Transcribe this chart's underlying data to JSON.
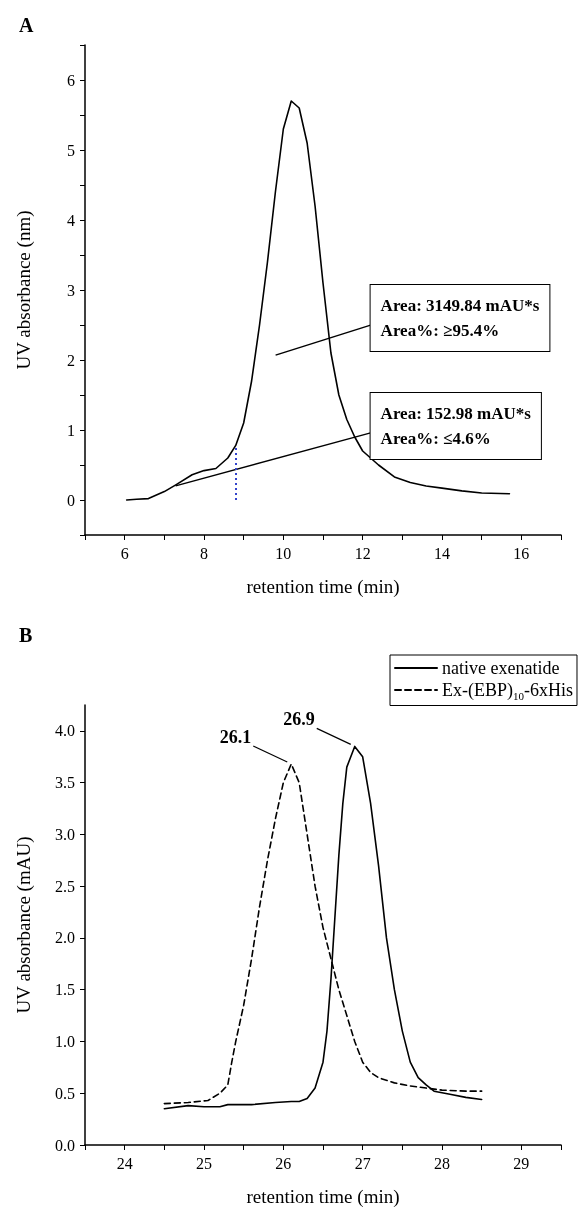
{
  "chart_data": [
    {
      "type": "line",
      "title": "A",
      "xlabel": "retention time (min)",
      "ylabel": "UV absorbance (nm)",
      "xlim": [
        5,
        17
      ],
      "ylim": [
        -0.5,
        6.5
      ],
      "xticks": [
        {
          "value": 5,
          "label": null
        },
        6,
        {
          "value": 7,
          "label": null
        },
        8,
        {
          "value": 9,
          "label": null
        },
        10,
        {
          "value": 11,
          "label": null
        },
        12,
        {
          "value": 13,
          "label": null
        },
        14,
        {
          "value": 15,
          "label": null
        },
        16,
        {
          "value": 17,
          "label": null
        }
      ],
      "yticks": [
        {
          "value": -0.5,
          "label": null
        },
        0,
        {
          "value": 0.5,
          "label": null
        },
        1,
        {
          "value": 1.5,
          "label": null
        },
        2,
        {
          "value": 2.5,
          "label": null
        },
        3,
        {
          "value": 3.5,
          "label": null
        },
        4,
        {
          "value": 4.5,
          "label": null
        },
        5,
        {
          "value": 5.5,
          "label": null
        },
        6,
        {
          "value": 6.5,
          "label": null
        }
      ],
      "grid": false,
      "legend": false,
      "marker": "none",
      "series": [
        {
          "color": "#000000",
          "line_style": "solid",
          "x": [
            6.05,
            6.3,
            6.6,
            7,
            7.3,
            7.7,
            8,
            8.3,
            8.6,
            8.8,
            9,
            9.2,
            9.4,
            9.6,
            9.8,
            10,
            10.2,
            10.4,
            10.6,
            10.8,
            11,
            11.2,
            11.4,
            11.6,
            11.8,
            12,
            12.4,
            12.8,
            13.2,
            13.6,
            14,
            14.5,
            15,
            15.7
          ],
          "values": [
            0,
            0.01,
            0.02,
            0.12,
            0.22,
            0.36,
            0.42,
            0.45,
            0.6,
            0.78,
            1.1,
            1.7,
            2.5,
            3.4,
            4.4,
            5.3,
            5.7,
            5.6,
            5.1,
            4.2,
            3.1,
            2.1,
            1.5,
            1.15,
            0.9,
            0.7,
            0.5,
            0.33,
            0.25,
            0.2,
            0.17,
            0.13,
            0.1,
            0.09
          ]
        }
      ],
      "ref_lines": [
        {
          "axis": "x",
          "value": 8.8,
          "color": "#3344cc",
          "line_style": "dotted"
        }
      ],
      "annotations": [
        "Area: 3149.84 mAU*s\nArea%: ≥95.4%",
        "Area: 152.98 mAU*s\nArea%: ≤4.6%"
      ]
    },
    {
      "type": "line",
      "title": "B",
      "xlabel": "retention time (min)",
      "ylabel": "UV absorbance (mAU)",
      "xlim": [
        23.5,
        29.5
      ],
      "ylim": [
        0,
        4.25
      ],
      "xticks": [
        {
          "value": 23.5,
          "label": null
        },
        24,
        {
          "value": 24.5,
          "label": null
        },
        25,
        {
          "value": 25.5,
          "label": null
        },
        26,
        {
          "value": 26.5,
          "label": null
        },
        27,
        {
          "value": 27.5,
          "label": null
        },
        28,
        {
          "value": 28.5,
          "label": null
        },
        29,
        {
          "value": 29.5,
          "label": null
        }
      ],
      "yticks": [
        {
          "value": 0,
          "label": "0.0"
        },
        0.5,
        {
          "value": 1,
          "label": "1.0"
        },
        1.5,
        {
          "value": 2,
          "label": "2.0"
        },
        2.5,
        {
          "value": 3,
          "label": "3.0"
        },
        3.5,
        {
          "value": 4,
          "label": "4.0"
        }
      ],
      "grid": false,
      "legend": "top right",
      "marker": "none",
      "series": [
        {
          "name": "native exenatide",
          "color": "#000000",
          "line_style": "solid",
          "x": [
            24.5,
            24.8,
            25,
            25.2,
            25.3,
            25.6,
            25.9,
            26.1,
            26.2,
            26.3,
            26.4,
            26.5,
            26.55,
            26.6,
            26.65,
            26.7,
            26.75,
            26.8,
            26.9,
            27,
            27.1,
            27.2,
            27.3,
            27.4,
            27.5,
            27.6,
            27.7,
            27.8,
            27.9,
            28.1,
            28.3,
            28.5
          ],
          "values": [
            0.35,
            0.38,
            0.37,
            0.37,
            0.39,
            0.39,
            0.41,
            0.42,
            0.42,
            0.45,
            0.55,
            0.8,
            1.1,
            1.6,
            2.2,
            2.8,
            3.3,
            3.65,
            3.85,
            3.75,
            3.3,
            2.7,
            2,
            1.5,
            1.1,
            0.8,
            0.65,
            0.58,
            0.52,
            0.49,
            0.46,
            0.44
          ]
        },
        {
          "name": "Ex-(EBP)$_{10}$-6xHis",
          "color": "#000000",
          "line_style": "dashed",
          "x": [
            24.5,
            24.8,
            25.05,
            25.2,
            25.3,
            25.35,
            25.4,
            25.5,
            25.6,
            25.7,
            25.8,
            25.9,
            26,
            26.1,
            26.2,
            26.3,
            26.4,
            26.5,
            26.6,
            26.7,
            26.8,
            26.9,
            27,
            27.1,
            27.2,
            27.4,
            27.6,
            27.8,
            28,
            28.3,
            28.5
          ],
          "values": [
            0.4,
            0.41,
            0.43,
            0.5,
            0.58,
            0.8,
            1,
            1.35,
            1.8,
            2.3,
            2.75,
            3.15,
            3.5,
            3.68,
            3.5,
            3,
            2.5,
            2.1,
            1.8,
            1.5,
            1.25,
            1,
            0.8,
            0.7,
            0.65,
            0.6,
            0.57,
            0.55,
            0.53,
            0.52,
            0.52
          ]
        }
      ],
      "annotations": [
        {
          "text": "26.9",
          "x": 26.9,
          "y": 3.85
        },
        {
          "text": "26.1",
          "x": 26.1,
          "y": 3.68
        }
      ]
    }
  ]
}
